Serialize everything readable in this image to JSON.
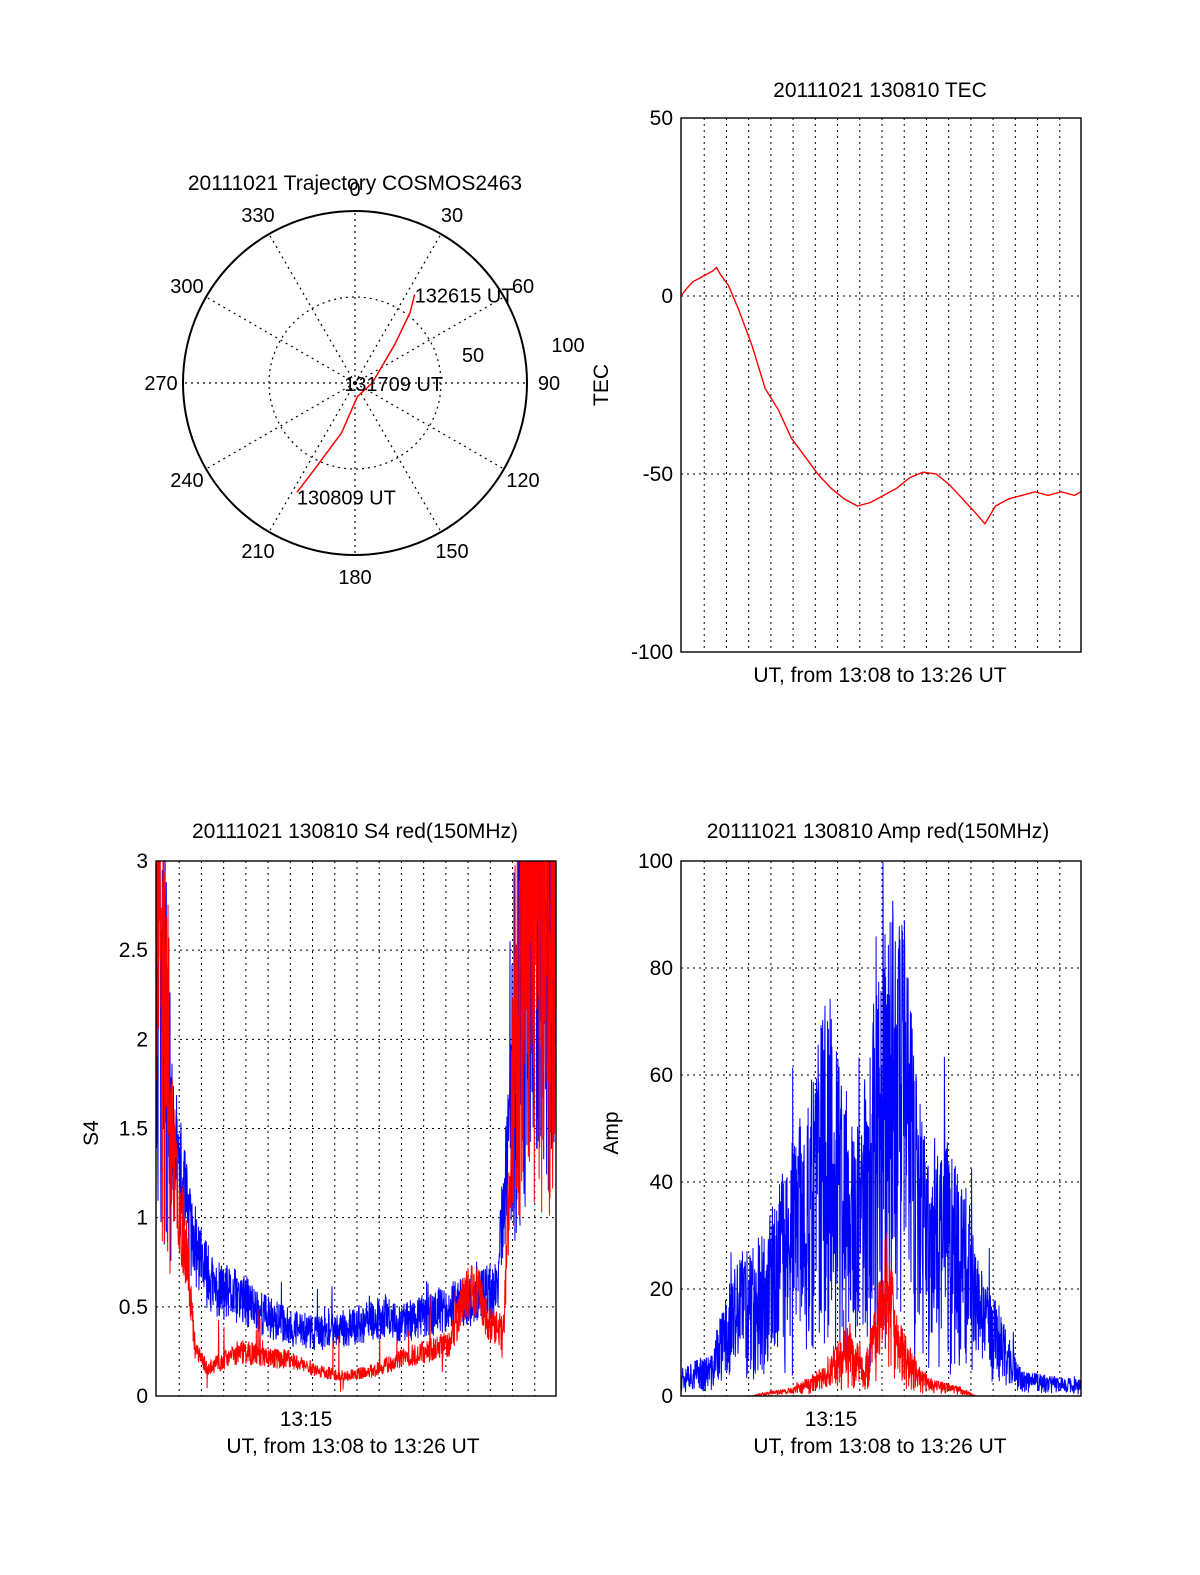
{
  "colors": {
    "red": "#ff0000",
    "blue": "#0000ff",
    "axis": "#000000",
    "grid": "#000000"
  },
  "chart_data": [
    {
      "id": "trajectory",
      "type": "polar",
      "title": "20111021 Trajectory COSMOS2463",
      "angle_labels": [
        "0",
        "30",
        "60",
        "90",
        "120",
        "150",
        "180",
        "210",
        "240",
        "270",
        "300",
        "330"
      ],
      "angles": [
        0,
        30,
        60,
        90,
        120,
        150,
        180,
        210,
        240,
        270,
        300,
        330
      ],
      "radial_ticks": [
        50,
        100
      ],
      "radial_tick_labels": [
        "50",
        "100"
      ],
      "rmax": 100,
      "track": [
        [
          34,
          62
        ],
        [
          38,
          52
        ],
        [
          46,
          32
        ],
        [
          90,
          10
        ],
        [
          170,
          8
        ],
        [
          195,
          30
        ],
        [
          205,
          55
        ],
        [
          208,
          72
        ]
      ],
      "annotations": [
        {
          "text": "132615 UT",
          "az": 34,
          "r": 62
        },
        {
          "text": "131709 UT",
          "az": 90,
          "r": 10
        },
        {
          "text": "130809 UT",
          "az": 208,
          "r": 72
        }
      ]
    },
    {
      "id": "tec",
      "type": "line",
      "title": "20111021 130810 TEC",
      "xlabel": "UT, from 13:08 to 13:26 UT",
      "ylabel": "TEC",
      "xlim": [
        13.136,
        13.44
      ],
      "ylim": [
        -100,
        50
      ],
      "yticks": [
        -100,
        -50,
        0,
        50
      ],
      "ytick_labels": [
        "-100",
        "-50",
        "0",
        "50"
      ],
      "xticks": [],
      "xtick_labels": [],
      "series": [
        {
          "color": "red",
          "points": [
            [
              13.136,
              0
            ],
            [
              13.14,
              2
            ],
            [
              13.145,
              4
            ],
            [
              13.15,
              5
            ],
            [
              13.155,
              6
            ],
            [
              13.16,
              7
            ],
            [
              13.163,
              8
            ],
            [
              13.166,
              6
            ],
            [
              13.172,
              3
            ],
            [
              13.18,
              -4
            ],
            [
              13.19,
              -14
            ],
            [
              13.2,
              -26
            ],
            [
              13.21,
              -32
            ],
            [
              13.22,
              -40
            ],
            [
              13.23,
              -45
            ],
            [
              13.24,
              -50
            ],
            [
              13.25,
              -54
            ],
            [
              13.26,
              -57
            ],
            [
              13.27,
              -59
            ],
            [
              13.28,
              -58
            ],
            [
              13.29,
              -56
            ],
            [
              13.3,
              -54
            ],
            [
              13.31,
              -51
            ],
            [
              13.32,
              -49.5
            ],
            [
              13.33,
              -50
            ],
            [
              13.34,
              -53
            ],
            [
              13.35,
              -57
            ],
            [
              13.36,
              -61
            ],
            [
              13.367,
              -64
            ],
            [
              13.375,
              -59
            ],
            [
              13.385,
              -57
            ],
            [
              13.395,
              -56
            ],
            [
              13.405,
              -55
            ],
            [
              13.415,
              -56
            ],
            [
              13.425,
              -55
            ],
            [
              13.435,
              -56
            ],
            [
              13.44,
              -55
            ]
          ]
        }
      ]
    },
    {
      "id": "s4",
      "type": "line",
      "title": "20111021 130810 S4 red(150MHz)",
      "xlabel": "UT, from 13:08 to 13:26 UT",
      "ylabel": "S4",
      "xlim": [
        13.136,
        13.44
      ],
      "ylim": [
        0,
        3
      ],
      "yticks": [
        0,
        0.5,
        1,
        1.5,
        2,
        2.5,
        3
      ],
      "ytick_labels": [
        "0",
        "0.5",
        "1",
        "1.5",
        "2",
        "2.5",
        "3"
      ],
      "xticks": [
        13.25
      ],
      "xtick_labels": [
        "13:15"
      ],
      "series": [
        {
          "color": "blue",
          "noise": true,
          "seed": 11,
          "points": [
            [
              13.136,
              2.6
            ],
            [
              13.145,
              1.6
            ],
            [
              13.155,
              1.2
            ],
            [
              13.163,
              0.9
            ],
            [
              13.17,
              0.75
            ],
            [
              13.18,
              0.6
            ],
            [
              13.2,
              0.55
            ],
            [
              13.22,
              0.45
            ],
            [
              13.24,
              0.38
            ],
            [
              13.26,
              0.35
            ],
            [
              13.28,
              0.38
            ],
            [
              13.3,
              0.42
            ],
            [
              13.31,
              0.45
            ],
            [
              13.32,
              0.4
            ],
            [
              13.34,
              0.45
            ],
            [
              13.36,
              0.5
            ],
            [
              13.38,
              0.55
            ],
            [
              13.395,
              0.6
            ],
            [
              13.405,
              1.5
            ],
            [
              13.415,
              2.6
            ],
            [
              13.425,
              2.6
            ],
            [
              13.44,
              2.5
            ]
          ]
        },
        {
          "color": "red",
          "noise": true,
          "seed": 23,
          "points": [
            [
              13.136,
              2.6
            ],
            [
              13.145,
              1.6
            ],
            [
              13.155,
              1.0
            ],
            [
              13.16,
              0.8
            ],
            [
              13.165,
              0.3
            ],
            [
              13.175,
              0.15
            ],
            [
              13.2,
              0.25
            ],
            [
              13.22,
              0.22
            ],
            [
              13.24,
              0.2
            ],
            [
              13.26,
              0.14
            ],
            [
              13.28,
              0.11
            ],
            [
              13.3,
              0.14
            ],
            [
              13.32,
              0.2
            ],
            [
              13.34,
              0.25
            ],
            [
              13.36,
              0.3
            ],
            [
              13.37,
              0.55
            ],
            [
              13.38,
              0.6
            ],
            [
              13.39,
              0.4
            ],
            [
              13.4,
              0.35
            ],
            [
              13.41,
              2.3
            ],
            [
              13.42,
              2.7
            ],
            [
              13.44,
              2.3
            ]
          ]
        }
      ]
    },
    {
      "id": "amp",
      "type": "line",
      "title": "20111021 130810 Amp red(150MHz)",
      "xlabel": "UT, from 13:08 to 13:26 UT",
      "ylabel": "Amp",
      "xlim": [
        13.136,
        13.44
      ],
      "ylim": [
        0,
        100
      ],
      "yticks": [
        0,
        20,
        40,
        60,
        80,
        100
      ],
      "ytick_labels": [
        "0",
        "20",
        "40",
        "60",
        "80",
        "100"
      ],
      "xticks": [
        13.25
      ],
      "xtick_labels": [
        "13:15"
      ],
      "series": [
        {
          "color": "blue",
          "noise": true,
          "seed": 37,
          "points": [
            [
              13.136,
              4
            ],
            [
              13.16,
              5
            ],
            [
              13.163,
              8
            ],
            [
              13.175,
              15
            ],
            [
              13.185,
              18
            ],
            [
              13.2,
              20
            ],
            [
              13.215,
              28
            ],
            [
              13.225,
              33
            ],
            [
              13.235,
              38
            ],
            [
              13.245,
              48
            ],
            [
              13.25,
              50
            ],
            [
              13.26,
              35
            ],
            [
              13.27,
              30
            ],
            [
              13.28,
              45
            ],
            [
              13.29,
              58
            ],
            [
              13.3,
              62
            ],
            [
              13.305,
              60
            ],
            [
              13.315,
              38
            ],
            [
              13.325,
              28
            ],
            [
              13.335,
              33
            ],
            [
              13.345,
              30
            ],
            [
              13.355,
              24
            ],
            [
              13.36,
              18
            ],
            [
              13.395,
              3
            ],
            [
              13.44,
              2
            ]
          ]
        },
        {
          "color": "red",
          "noise": true,
          "seed": 53,
          "points": [
            [
              13.136,
              0
            ],
            [
              13.19,
              0
            ],
            [
              13.2,
              0.5
            ],
            [
              13.22,
              1
            ],
            [
              13.235,
              2.5
            ],
            [
              13.245,
              4
            ],
            [
              13.255,
              7
            ],
            [
              13.265,
              9
            ],
            [
              13.275,
              4
            ],
            [
              13.285,
              12
            ],
            [
              13.292,
              22
            ],
            [
              13.3,
              10
            ],
            [
              13.31,
              6
            ],
            [
              13.32,
              3
            ],
            [
              13.33,
              2
            ],
            [
              13.35,
              1
            ],
            [
              13.36,
              0
            ],
            [
              13.44,
              0
            ]
          ]
        }
      ]
    }
  ]
}
